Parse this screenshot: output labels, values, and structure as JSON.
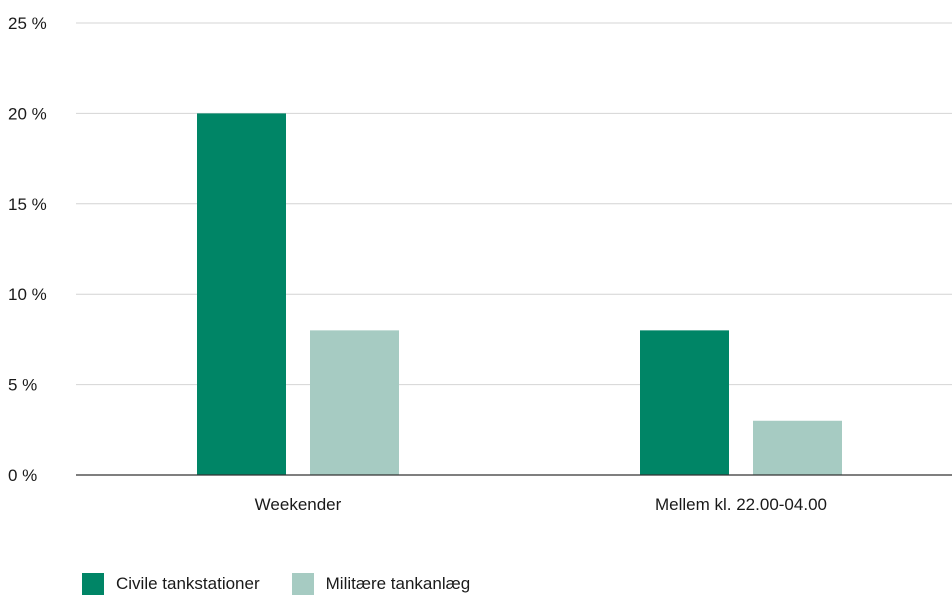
{
  "chart_data": {
    "type": "bar",
    "categories": [
      "Weekender",
      "Mellem kl. 22.00-04.00"
    ],
    "series": [
      {
        "name": "Civile tankstationer",
        "values": [
          20,
          8
        ],
        "color": "#008566"
      },
      {
        "name": "Militære tankanlæg",
        "values": [
          8,
          3
        ],
        "color": "#a6cbc2"
      }
    ],
    "yticks": [
      0,
      5,
      10,
      15,
      20,
      25
    ],
    "ytick_labels": [
      "0 %",
      "5 %",
      "10 %",
      "15 %",
      "20 %",
      "25 %"
    ],
    "ylim": [
      0,
      25
    ],
    "grid": true,
    "legend_position": "bottom-left",
    "title": "",
    "xlabel": "",
    "ylabel": ""
  }
}
